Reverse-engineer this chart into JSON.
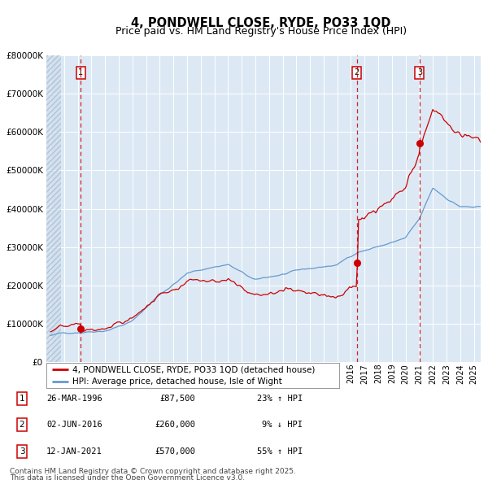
{
  "title": "4, PONDWELL CLOSE, RYDE, PO33 1QD",
  "subtitle": "Price paid vs. HM Land Registry's House Price Index (HPI)",
  "legend_line1": "4, PONDWELL CLOSE, RYDE, PO33 1QD (detached house)",
  "legend_line2": "HPI: Average price, detached house, Isle of Wight",
  "footnote_line1": "Contains HM Land Registry data © Crown copyright and database right 2025.",
  "footnote_line2": "This data is licensed under the Open Government Licence v3.0.",
  "sale_labels": [
    "1",
    "2",
    "3"
  ],
  "sale_dates": [
    "26-MAR-1996",
    "02-JUN-2016",
    "12-JAN-2021"
  ],
  "sale_prices": [
    87500,
    260000,
    570000
  ],
  "sale_hpi_diff": [
    "23% ↑ HPI",
    "9% ↓ HPI",
    "55% ↑ HPI"
  ],
  "sale_years": [
    1996.23,
    2016.42,
    2021.03
  ],
  "ylim": [
    0,
    800000
  ],
  "xlim_start": 1993.7,
  "xlim_end": 2025.5,
  "bg_color": "#dce9f5",
  "fig_bg": "#ffffff",
  "red_line_color": "#cc0000",
  "blue_line_color": "#6699cc",
  "grid_color": "#ffffff",
  "box_edge_color": "#cc0000",
  "title_fontsize": 10.5,
  "subtitle_fontsize": 9,
  "tick_fontsize": 7.5,
  "legend_fontsize": 8,
  "footnote_fontsize": 6.5
}
